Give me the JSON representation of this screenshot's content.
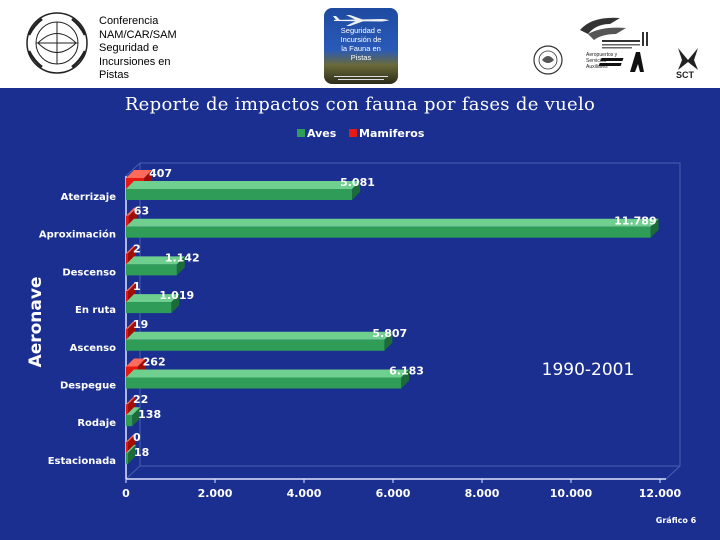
{
  "header": {
    "conference_lines": [
      "Conferencia",
      "NAM/CAR/SAM",
      "Seguridad e",
      "Incursiones en",
      "Pistas"
    ],
    "badge_lines": [
      "Seguridad e",
      "Incursión de",
      "la Fauna en",
      "Pistas"
    ],
    "logos": [
      "icao-emblem",
      "seal-emblem",
      "aviation-wings-logo",
      "stacked-plane-logo",
      "sct-logo"
    ],
    "logo_text": [
      "Aeropuertos y",
      "Servicios",
      "Auxiliares",
      "SCT"
    ]
  },
  "colors": {
    "background": "#1a2f8f",
    "aves": "#2f9c58",
    "mamiferos": "#e51a12"
  },
  "chart_data": {
    "type": "bar",
    "orientation": "horizontal",
    "title": "Reporte de impactos con fauna por fases de vuelo",
    "ylabel": "Aeronave",
    "xlabel": "",
    "categories": [
      "Aterrizaje",
      "Aproximación",
      "Descenso",
      "En ruta",
      "Ascenso",
      "Despegue",
      "Rodaje",
      "Estacionada"
    ],
    "series": [
      {
        "name": "Aves",
        "values": [
          5081,
          11789,
          1142,
          1019,
          5807,
          6183,
          138,
          18
        ],
        "labels": [
          "5.081",
          "11.789",
          "1.142",
          "1.019",
          "5.807",
          "6.183",
          "138",
          "18"
        ]
      },
      {
        "name": "Mamiferos",
        "values": [
          407,
          63,
          2,
          1,
          19,
          262,
          22,
          0
        ],
        "labels": [
          "407",
          "63",
          "2",
          "1",
          "19",
          "262",
          "22",
          "0"
        ]
      }
    ],
    "xlim": [
      0,
      12000
    ],
    "xticks": [
      0,
      2000,
      4000,
      6000,
      8000,
      10000,
      12000
    ],
    "xtick_labels": [
      "0",
      "2.000",
      "4.000",
      "6.000",
      "8.000",
      "10.000",
      "12.000"
    ],
    "grid": false,
    "legend_position": "top-center",
    "annotation": "1990-2001",
    "footer": "Gráfico 6",
    "style": "3d"
  }
}
